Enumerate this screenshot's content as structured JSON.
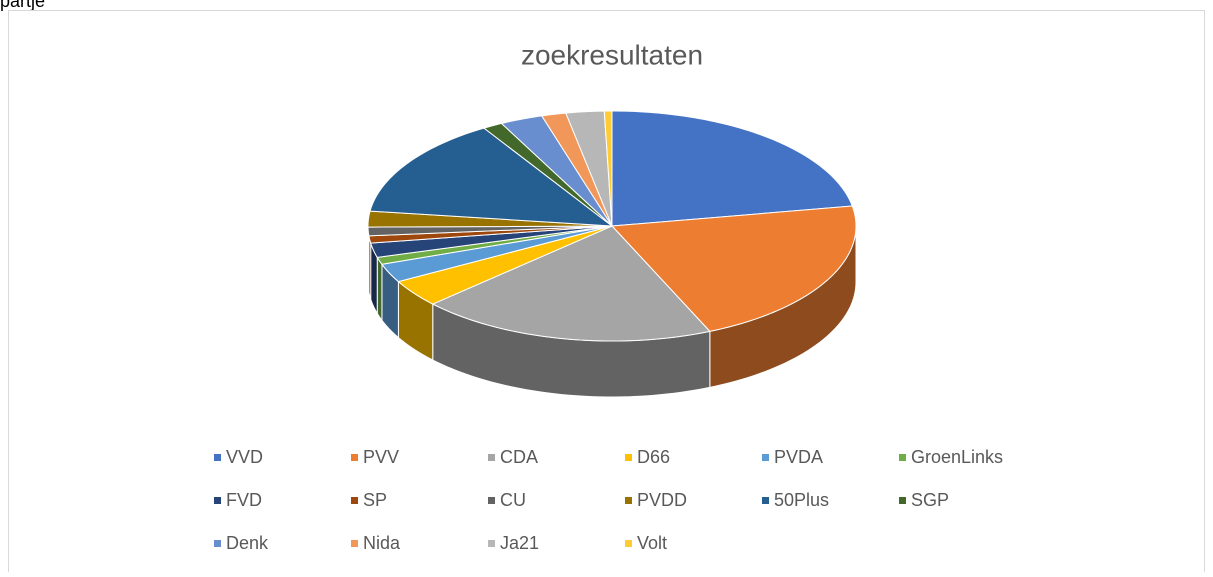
{
  "heading": "partje",
  "chart_data": {
    "type": "pie3d",
    "title": "zoekresultaten",
    "categories": [
      "VVD",
      "PVV",
      "CDA",
      "D66",
      "PVDA",
      "GroenLinks",
      "FVD",
      "SP",
      "CU",
      "PVDD",
      "50Plus",
      "SGP",
      "Denk",
      "Nida",
      "Ja21",
      "Volt"
    ],
    "values": [
      22,
      21,
      19.5,
      3.8,
      2.6,
      1,
      2,
      1,
      1.2,
      2.2,
      14,
      1.3,
      2.8,
      1.6,
      2.5,
      0.5
    ],
    "colors": [
      "#4472c4",
      "#ed7d31",
      "#a5a5a5",
      "#ffc000",
      "#5b9bd5",
      "#70ad47",
      "#264478",
      "#9e480e",
      "#636363",
      "#997300",
      "#255e91",
      "#43682b",
      "#698ed0",
      "#f1975a",
      "#b7b7b7",
      "#ffcd33"
    ],
    "legend": "bottom"
  }
}
